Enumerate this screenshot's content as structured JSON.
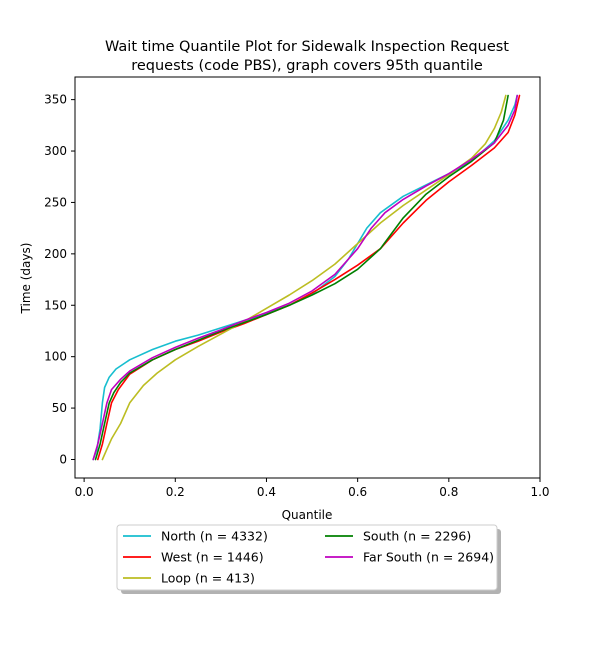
{
  "chart_data": {
    "type": "line",
    "title": "Wait time Quantile Plot for Sidewalk Inspection Request",
    "subtitle": "requests (code PBS), graph covers 95th quantile",
    "xlabel": "Quantile",
    "ylabel": "Time (days)",
    "xlim": [
      -0.02,
      1.0
    ],
    "ylim": [
      -18,
      372
    ],
    "xticks": [
      "0.0",
      "0.2",
      "0.4",
      "0.6",
      "0.8",
      "1.0"
    ],
    "xtick_values": [
      0.0,
      0.2,
      0.4,
      0.6,
      0.8,
      1.0
    ],
    "yticks": [
      "0",
      "50",
      "100",
      "150",
      "200",
      "250",
      "300",
      "350"
    ],
    "ytick_values": [
      0,
      50,
      100,
      150,
      200,
      250,
      300,
      350
    ],
    "grid": false,
    "legend_position": "bottom-center",
    "series": [
      {
        "name": "North (n = 4332)",
        "color": "#17becf",
        "points": [
          [
            0.02,
            0
          ],
          [
            0.028,
            10
          ],
          [
            0.035,
            30
          ],
          [
            0.04,
            55
          ],
          [
            0.045,
            70
          ],
          [
            0.055,
            80
          ],
          [
            0.07,
            88
          ],
          [
            0.1,
            97
          ],
          [
            0.15,
            107
          ],
          [
            0.2,
            115
          ],
          [
            0.25,
            121
          ],
          [
            0.3,
            128
          ],
          [
            0.35,
            135
          ],
          [
            0.4,
            142
          ],
          [
            0.45,
            150
          ],
          [
            0.5,
            161
          ],
          [
            0.55,
            178
          ],
          [
            0.58,
            195
          ],
          [
            0.6,
            210
          ],
          [
            0.62,
            225
          ],
          [
            0.65,
            240
          ],
          [
            0.7,
            256
          ],
          [
            0.75,
            267
          ],
          [
            0.8,
            278
          ],
          [
            0.85,
            290
          ],
          [
            0.9,
            310
          ],
          [
            0.93,
            330
          ],
          [
            0.945,
            345
          ],
          [
            0.95,
            354
          ]
        ]
      },
      {
        "name": "West (n = 1446)",
        "color": "#ff0000",
        "points": [
          [
            0.03,
            0
          ],
          [
            0.04,
            15
          ],
          [
            0.05,
            35
          ],
          [
            0.06,
            55
          ],
          [
            0.075,
            68
          ],
          [
            0.1,
            83
          ],
          [
            0.15,
            97
          ],
          [
            0.2,
            107
          ],
          [
            0.25,
            115
          ],
          [
            0.3,
            124
          ],
          [
            0.35,
            132
          ],
          [
            0.4,
            141
          ],
          [
            0.45,
            150
          ],
          [
            0.5,
            162
          ],
          [
            0.55,
            175
          ],
          [
            0.6,
            189
          ],
          [
            0.65,
            205
          ],
          [
            0.7,
            230
          ],
          [
            0.75,
            252
          ],
          [
            0.8,
            270
          ],
          [
            0.85,
            286
          ],
          [
            0.9,
            303
          ],
          [
            0.93,
            318
          ],
          [
            0.945,
            335
          ],
          [
            0.955,
            354
          ]
        ]
      },
      {
        "name": "Loop (n = 413)",
        "color": "#bcbd22",
        "points": [
          [
            0.04,
            0
          ],
          [
            0.05,
            10
          ],
          [
            0.06,
            20
          ],
          [
            0.08,
            35
          ],
          [
            0.1,
            55
          ],
          [
            0.13,
            72
          ],
          [
            0.16,
            84
          ],
          [
            0.2,
            97
          ],
          [
            0.25,
            110
          ],
          [
            0.3,
            122
          ],
          [
            0.35,
            134
          ],
          [
            0.4,
            147
          ],
          [
            0.45,
            160
          ],
          [
            0.5,
            174
          ],
          [
            0.55,
            190
          ],
          [
            0.6,
            210
          ],
          [
            0.65,
            230
          ],
          [
            0.7,
            247
          ],
          [
            0.75,
            262
          ],
          [
            0.8,
            277
          ],
          [
            0.85,
            293
          ],
          [
            0.88,
            307
          ],
          [
            0.9,
            322
          ],
          [
            0.915,
            338
          ],
          [
            0.925,
            354
          ]
        ]
      },
      {
        "name": "South (n = 2296)",
        "color": "#008000",
        "points": [
          [
            0.025,
            0
          ],
          [
            0.035,
            15
          ],
          [
            0.045,
            35
          ],
          [
            0.055,
            55
          ],
          [
            0.065,
            65
          ],
          [
            0.08,
            75
          ],
          [
            0.1,
            84
          ],
          [
            0.15,
            97
          ],
          [
            0.2,
            107
          ],
          [
            0.25,
            116
          ],
          [
            0.3,
            125
          ],
          [
            0.35,
            133
          ],
          [
            0.4,
            141
          ],
          [
            0.45,
            150
          ],
          [
            0.5,
            160
          ],
          [
            0.55,
            171
          ],
          [
            0.6,
            185
          ],
          [
            0.65,
            205
          ],
          [
            0.7,
            235
          ],
          [
            0.75,
            258
          ],
          [
            0.8,
            275
          ],
          [
            0.85,
            290
          ],
          [
            0.9,
            308
          ],
          [
            0.92,
            330
          ],
          [
            0.93,
            354
          ]
        ]
      },
      {
        "name": "Far South (n = 2694)",
        "color": "#bf00bf",
        "points": [
          [
            0.02,
            0
          ],
          [
            0.03,
            15
          ],
          [
            0.04,
            35
          ],
          [
            0.05,
            55
          ],
          [
            0.06,
            68
          ],
          [
            0.08,
            78
          ],
          [
            0.1,
            86
          ],
          [
            0.15,
            99
          ],
          [
            0.2,
            109
          ],
          [
            0.25,
            118
          ],
          [
            0.3,
            126
          ],
          [
            0.35,
            135
          ],
          [
            0.4,
            143
          ],
          [
            0.45,
            152
          ],
          [
            0.5,
            164
          ],
          [
            0.55,
            180
          ],
          [
            0.6,
            205
          ],
          [
            0.63,
            225
          ],
          [
            0.66,
            240
          ],
          [
            0.7,
            253
          ],
          [
            0.75,
            266
          ],
          [
            0.8,
            278
          ],
          [
            0.85,
            292
          ],
          [
            0.9,
            308
          ],
          [
            0.93,
            325
          ],
          [
            0.945,
            340
          ],
          [
            0.95,
            354
          ]
        ]
      }
    ]
  }
}
